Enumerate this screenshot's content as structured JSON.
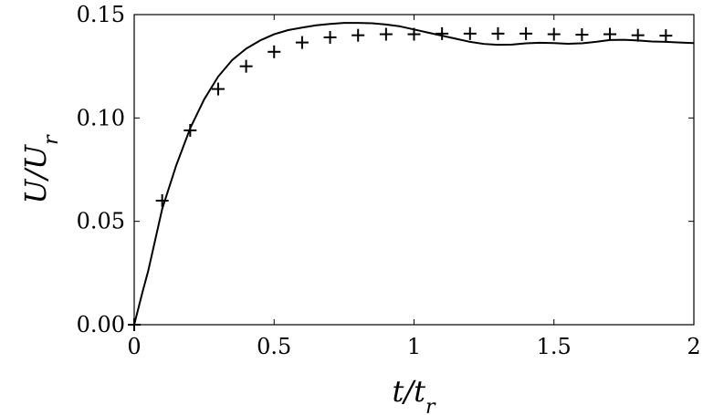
{
  "chart_data": {
    "type": "line",
    "xlabel": "t/t_r",
    "ylabel": "U/U_r",
    "xlim": [
      0,
      2
    ],
    "ylim": [
      0,
      0.15
    ],
    "x_ticks": [
      "0",
      "0.5",
      "1",
      "1.5",
      "2"
    ],
    "y_ticks": [
      "0.00",
      "0.05",
      "0.10",
      "0.15"
    ],
    "grid": false,
    "series": [
      {
        "kind": "line",
        "x": [
          0,
          0.03,
          0.05,
          0.1,
          0.15,
          0.2,
          0.25,
          0.3,
          0.35,
          0.4,
          0.45,
          0.5,
          0.55,
          0.6,
          0.65,
          0.7,
          0.75,
          0.8,
          0.85,
          0.9,
          0.95,
          1.0,
          1.05,
          1.1,
          1.15,
          1.2,
          1.25,
          1.3,
          1.35,
          1.4,
          1.45,
          1.5,
          1.55,
          1.6,
          1.65,
          1.7,
          1.75,
          1.8,
          1.85,
          1.9,
          1.95,
          2.0
        ],
        "y": [
          0,
          0.016,
          0.026,
          0.056,
          0.077,
          0.095,
          0.109,
          0.12,
          0.128,
          0.1335,
          0.1375,
          0.1405,
          0.1425,
          0.1437,
          0.1448,
          0.1455,
          0.146,
          0.146,
          0.1458,
          0.1452,
          0.1443,
          0.1428,
          0.1413,
          0.1398,
          0.1383,
          0.1368,
          0.1358,
          0.1354,
          0.1355,
          0.1361,
          0.1364,
          0.1362,
          0.1359,
          0.1361,
          0.1368,
          0.1377,
          0.1378,
          0.1375,
          0.137,
          0.1368,
          0.1365,
          0.1362
        ]
      },
      {
        "kind": "markers",
        "marker": "+",
        "x": [
          0,
          0.1,
          0.2,
          0.3,
          0.4,
          0.5,
          0.6,
          0.7,
          0.8,
          0.9,
          1.0,
          1.1,
          1.2,
          1.3,
          1.4,
          1.5,
          1.6,
          1.7,
          1.8,
          1.9
        ],
        "y": [
          0,
          0.06,
          0.094,
          0.114,
          0.125,
          0.132,
          0.1365,
          0.139,
          0.14,
          0.1405,
          0.1405,
          0.1408,
          0.1408,
          0.1408,
          0.1408,
          0.1405,
          0.1403,
          0.1405,
          0.14,
          0.1398
        ]
      }
    ]
  }
}
